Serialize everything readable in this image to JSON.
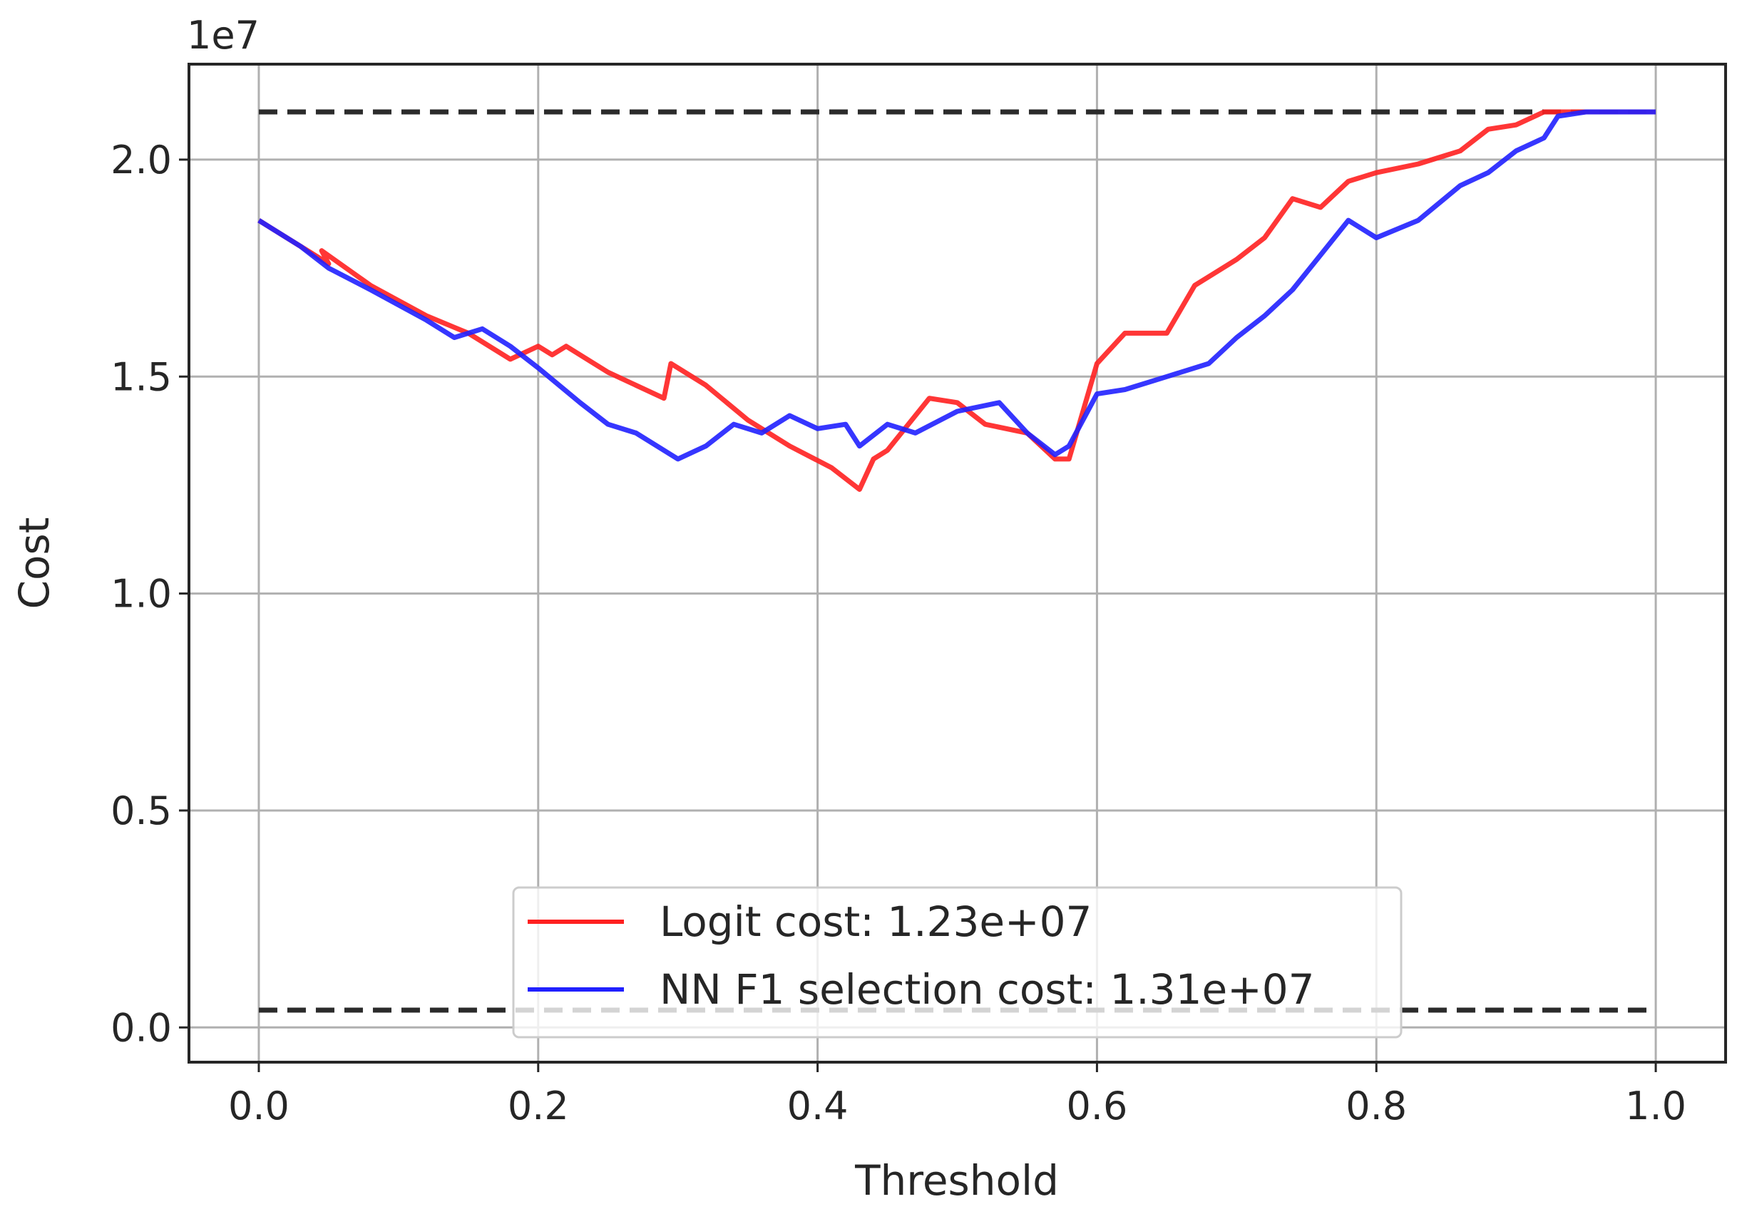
{
  "chart_data": {
    "type": "line",
    "xlabel": "Threshold",
    "ylabel": "Cost",
    "offset_label": "1e7",
    "xlim": [
      -0.05,
      1.05
    ],
    "ylim": [
      -0.08,
      2.22
    ],
    "xticks": [
      0.0,
      0.2,
      0.4,
      0.6,
      0.8,
      1.0
    ],
    "xtick_labels": [
      "0.0",
      "0.2",
      "0.4",
      "0.6",
      "0.8",
      "1.0"
    ],
    "yticks": [
      0.0,
      0.5,
      1.0,
      1.5,
      2.0
    ],
    "ytick_labels": [
      "0.0",
      "0.5",
      "1.0",
      "1.5",
      "2.0"
    ],
    "grid": true,
    "legend_position": "lower-center",
    "reference_lines": [
      {
        "y": 2.11,
        "color": "#2b2b2b",
        "style": "dashed"
      },
      {
        "y": 0.04,
        "color": "#2b2b2b",
        "style": "dashed"
      }
    ],
    "series": [
      {
        "name": "Logit cost: 1.23e+07",
        "color": "#ff2020",
        "x": [
          0.0,
          0.02,
          0.05,
          0.045,
          0.08,
          0.12,
          0.15,
          0.18,
          0.2,
          0.21,
          0.22,
          0.25,
          0.29,
          0.295,
          0.32,
          0.35,
          0.38,
          0.41,
          0.43,
          0.44,
          0.45,
          0.48,
          0.5,
          0.52,
          0.55,
          0.57,
          0.58,
          0.6,
          0.62,
          0.65,
          0.67,
          0.7,
          0.72,
          0.74,
          0.76,
          0.78,
          0.8,
          0.83,
          0.86,
          0.88,
          0.9,
          0.92,
          0.95,
          1.0
        ],
        "y": [
          1.86,
          1.82,
          1.76,
          1.79,
          1.71,
          1.64,
          1.6,
          1.54,
          1.57,
          1.55,
          1.57,
          1.51,
          1.45,
          1.53,
          1.48,
          1.4,
          1.34,
          1.29,
          1.24,
          1.31,
          1.33,
          1.45,
          1.44,
          1.39,
          1.37,
          1.31,
          1.31,
          1.53,
          1.6,
          1.6,
          1.71,
          1.77,
          1.82,
          1.91,
          1.89,
          1.95,
          1.97,
          1.99,
          2.02,
          2.07,
          2.08,
          2.11,
          2.11,
          2.11
        ]
      },
      {
        "name": "NN F1 selection cost: 1.31e+07",
        "color": "#2020ff",
        "x": [
          0.0,
          0.03,
          0.05,
          0.08,
          0.12,
          0.14,
          0.16,
          0.18,
          0.2,
          0.23,
          0.25,
          0.27,
          0.3,
          0.32,
          0.34,
          0.36,
          0.38,
          0.4,
          0.42,
          0.43,
          0.45,
          0.47,
          0.5,
          0.53,
          0.55,
          0.57,
          0.58,
          0.6,
          0.62,
          0.65,
          0.68,
          0.7,
          0.72,
          0.74,
          0.76,
          0.78,
          0.8,
          0.83,
          0.86,
          0.88,
          0.9,
          0.92,
          0.93,
          0.95,
          1.0
        ],
        "y": [
          1.86,
          1.8,
          1.75,
          1.7,
          1.63,
          1.59,
          1.61,
          1.57,
          1.52,
          1.44,
          1.39,
          1.37,
          1.31,
          1.34,
          1.39,
          1.37,
          1.41,
          1.38,
          1.39,
          1.34,
          1.39,
          1.37,
          1.42,
          1.44,
          1.37,
          1.32,
          1.34,
          1.46,
          1.47,
          1.5,
          1.53,
          1.59,
          1.64,
          1.7,
          1.78,
          1.86,
          1.82,
          1.86,
          1.94,
          1.97,
          2.02,
          2.05,
          2.1,
          2.11,
          2.11
        ]
      }
    ]
  }
}
